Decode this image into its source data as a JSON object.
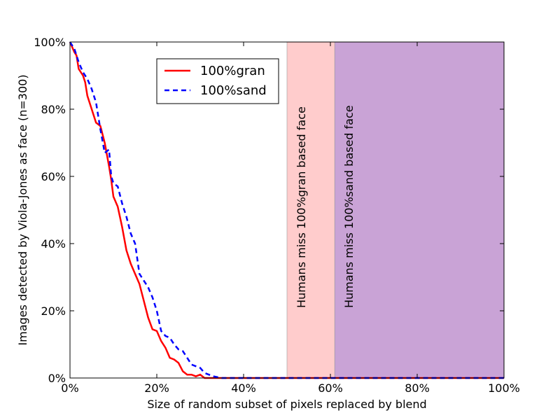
{
  "chart_data": {
    "type": "line",
    "xlabel": "Size of random subset of pixels replaced by blend",
    "ylabel": "Images detected by Viola-Jones as face (n=300)",
    "xlim": [
      0,
      100
    ],
    "ylim": [
      0,
      100
    ],
    "x_ticks": [
      "0%",
      "20%",
      "40%",
      "60%",
      "80%",
      "100%"
    ],
    "y_ticks": [
      "0%",
      "20%",
      "40%",
      "60%",
      "80%",
      "100%"
    ],
    "grid": false,
    "legend_position": "top-left-inside",
    "series": [
      {
        "name": "100%gran",
        "color": "#ff0000",
        "style": "solid",
        "points": [
          [
            0,
            100
          ],
          [
            1,
            97
          ],
          [
            1.5,
            96
          ],
          [
            2,
            92
          ],
          [
            3,
            90
          ],
          [
            3.5,
            88
          ],
          [
            4,
            84
          ],
          [
            5,
            80
          ],
          [
            6,
            76
          ],
          [
            7,
            75
          ],
          [
            8,
            70
          ],
          [
            9,
            63
          ],
          [
            9.5,
            59
          ],
          [
            10,
            54
          ],
          [
            11,
            51
          ],
          [
            11.5,
            48
          ],
          [
            12,
            45
          ],
          [
            13,
            38
          ],
          [
            14,
            34
          ],
          [
            15,
            31
          ],
          [
            16,
            28
          ],
          [
            17,
            23
          ],
          [
            18,
            18
          ],
          [
            19,
            14.5
          ],
          [
            20,
            14
          ],
          [
            21,
            11
          ],
          [
            22,
            9
          ],
          [
            23,
            6
          ],
          [
            24,
            5.5
          ],
          [
            25,
            4.5
          ],
          [
            26,
            2
          ],
          [
            27,
            1
          ],
          [
            28,
            1
          ],
          [
            29,
            0.5
          ],
          [
            30,
            1
          ],
          [
            31,
            0
          ],
          [
            32,
            0
          ],
          [
            40,
            0
          ],
          [
            60,
            0
          ],
          [
            80,
            0
          ],
          [
            100,
            0
          ]
        ]
      },
      {
        "name": "100%sand",
        "color": "#0000ff",
        "style": "dashed",
        "points": [
          [
            0,
            100
          ],
          [
            1,
            98
          ],
          [
            2,
            94
          ],
          [
            3,
            91
          ],
          [
            4,
            89
          ],
          [
            5,
            86
          ],
          [
            6,
            82
          ],
          [
            7,
            74
          ],
          [
            8,
            67
          ],
          [
            9,
            68
          ],
          [
            9.5,
            60
          ],
          [
            10,
            58
          ],
          [
            11,
            57
          ],
          [
            12,
            52
          ],
          [
            13,
            48
          ],
          [
            14,
            43
          ],
          [
            15,
            40
          ],
          [
            16,
            31
          ],
          [
            17,
            29
          ],
          [
            18,
            27
          ],
          [
            19,
            24
          ],
          [
            20,
            20
          ],
          [
            21,
            14
          ],
          [
            22,
            12.5
          ],
          [
            23,
            12
          ],
          [
            24,
            10
          ],
          [
            25,
            8.5
          ],
          [
            26,
            8
          ],
          [
            27,
            6
          ],
          [
            28,
            4
          ],
          [
            30,
            3
          ],
          [
            31,
            1.5
          ],
          [
            32,
            1
          ],
          [
            33,
            0.5
          ],
          [
            35,
            0
          ],
          [
            40,
            0
          ],
          [
            60,
            0
          ],
          [
            80,
            0
          ],
          [
            100,
            0
          ]
        ]
      }
    ],
    "bands": [
      {
        "x0": 50,
        "x1": 61,
        "color": "#ffcccc",
        "label": "Humans miss 100%gran based face"
      },
      {
        "x0": 61,
        "x1": 100,
        "color": "#c9a3d6",
        "label": "Humans miss 100%sand based face"
      }
    ]
  }
}
